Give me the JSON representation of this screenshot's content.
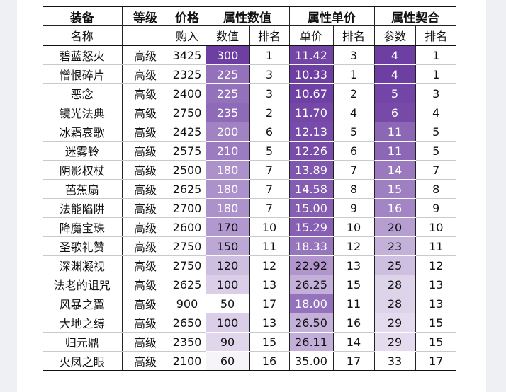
{
  "table": {
    "header_top": [
      "装备",
      "等级",
      "价格",
      "属性数值",
      "属性单价",
      "属性契合"
    ],
    "header_sub": [
      "名称",
      "",
      "购入",
      "数值",
      "排名",
      "单价",
      "排名",
      "参数",
      "排名"
    ],
    "rows": [
      {
        "name": "碧蓝怒火",
        "grade": "高级",
        "price": "3425",
        "value": "300",
        "value_rank": "1",
        "unit": "11.42",
        "unit_rank": "3",
        "param": "4",
        "param_rank": "1"
      },
      {
        "name": "憎恨碎片",
        "grade": "高级",
        "price": "2325",
        "value": "225",
        "value_rank": "3",
        "unit": "10.33",
        "unit_rank": "1",
        "param": "4",
        "param_rank": "1"
      },
      {
        "name": "恶念",
        "grade": "高级",
        "price": "2400",
        "value": "225",
        "value_rank": "3",
        "unit": "10.67",
        "unit_rank": "2",
        "param": "5",
        "param_rank": "3"
      },
      {
        "name": "镜光法典",
        "grade": "高级",
        "price": "2750",
        "value": "235",
        "value_rank": "2",
        "unit": "11.70",
        "unit_rank": "4",
        "param": "6",
        "param_rank": "4"
      },
      {
        "name": "冰霜哀歌",
        "grade": "高级",
        "price": "2425",
        "value": "200",
        "value_rank": "6",
        "unit": "12.13",
        "unit_rank": "5",
        "param": "11",
        "param_rank": "5"
      },
      {
        "name": "迷雾铃",
        "grade": "高级",
        "price": "2575",
        "value": "210",
        "value_rank": "5",
        "unit": "12.26",
        "unit_rank": "6",
        "param": "11",
        "param_rank": "5"
      },
      {
        "name": "阴影权杖",
        "grade": "高级",
        "price": "2500",
        "value": "180",
        "value_rank": "7",
        "unit": "13.89",
        "unit_rank": "7",
        "param": "14",
        "param_rank": "7"
      },
      {
        "name": "芭蕉扇",
        "grade": "高级",
        "price": "2625",
        "value": "180",
        "value_rank": "7",
        "unit": "14.58",
        "unit_rank": "8",
        "param": "15",
        "param_rank": "8"
      },
      {
        "name": "法能陷阱",
        "grade": "高级",
        "price": "2700",
        "value": "180",
        "value_rank": "7",
        "unit": "15.00",
        "unit_rank": "9",
        "param": "16",
        "param_rank": "9"
      },
      {
        "name": "降魔宝珠",
        "grade": "高级",
        "price": "2600",
        "value": "170",
        "value_rank": "10",
        "unit": "15.29",
        "unit_rank": "10",
        "param": "20",
        "param_rank": "10"
      },
      {
        "name": "圣歌礼赞",
        "grade": "高级",
        "price": "2750",
        "value": "150",
        "value_rank": "11",
        "unit": "18.33",
        "unit_rank": "12",
        "param": "23",
        "param_rank": "11"
      },
      {
        "name": "深渊凝视",
        "grade": "高级",
        "price": "2750",
        "value": "120",
        "value_rank": "12",
        "unit": "22.92",
        "unit_rank": "13",
        "param": "25",
        "param_rank": "12"
      },
      {
        "name": "法老的诅咒",
        "grade": "高级",
        "price": "2625",
        "value": "100",
        "value_rank": "13",
        "unit": "26.25",
        "unit_rank": "15",
        "param": "28",
        "param_rank": "13"
      },
      {
        "name": "风暴之翼",
        "grade": "高级",
        "price": "900",
        "value": "50",
        "value_rank": "17",
        "unit": "18.00",
        "unit_rank": "11",
        "param": "28",
        "param_rank": "13"
      },
      {
        "name": "大地之缚",
        "grade": "高级",
        "price": "2650",
        "value": "100",
        "value_rank": "13",
        "unit": "26.50",
        "unit_rank": "16",
        "param": "29",
        "param_rank": "15"
      },
      {
        "name": "归元鼎",
        "grade": "高级",
        "price": "2350",
        "value": "90",
        "value_rank": "15",
        "unit": "26.11",
        "unit_rank": "14",
        "param": "29",
        "param_rank": "15"
      },
      {
        "name": "火凤之眼",
        "grade": "高级",
        "price": "2100",
        "value": "60",
        "value_rank": "16",
        "unit": "35.00",
        "unit_rank": "17",
        "param": "33",
        "param_rank": "17"
      }
    ]
  },
  "colors": {
    "scale_dark": "#6e3fa3",
    "scale_light": "#ffffff",
    "text_dark_bg": "#ffffff",
    "text_light_bg": "#111111"
  }
}
